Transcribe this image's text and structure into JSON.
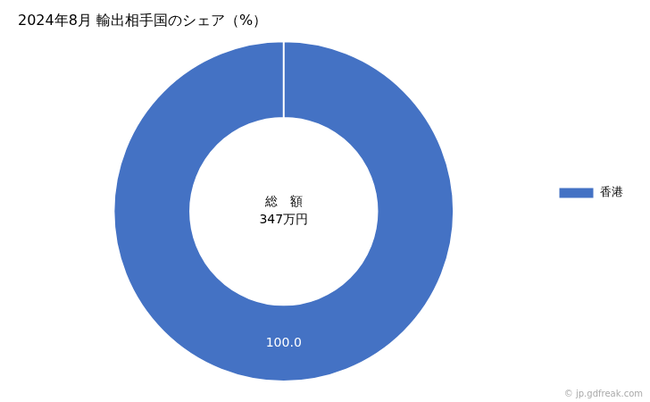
{
  "chart_data": {
    "type": "doughnut",
    "title": "2024年8月 輸出相手国のシェア（%）",
    "categories": [
      "香港"
    ],
    "values": [
      100.0
    ],
    "value_labels": [
      "100.0"
    ],
    "data_labels": true,
    "colors": [
      "#4472C4"
    ],
    "legend": "right",
    "center_text": [
      "総　額",
      "347万円"
    ],
    "footer": "© jp.gdfreak.com"
  }
}
